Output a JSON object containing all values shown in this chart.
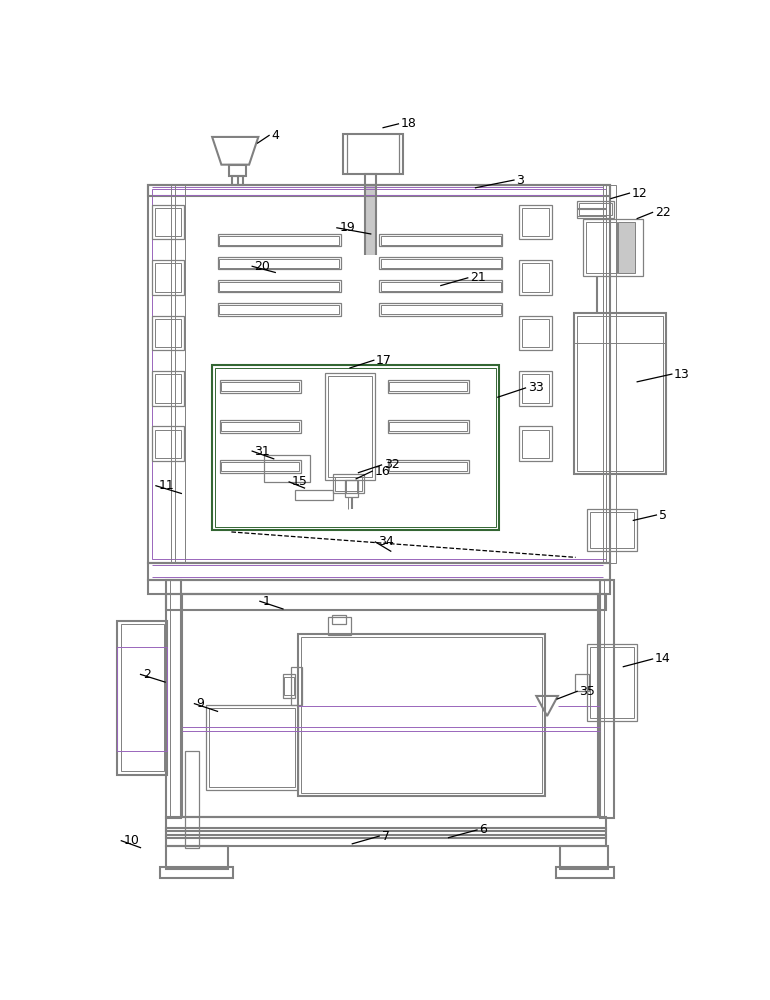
{
  "bg": "#ffffff",
  "lc": "#808080",
  "pc": "#9966bb",
  "gc": "#336633",
  "lgray": "#c8c8c8",
  "lw": 1.5,
  "lw2": 0.9,
  "lw3": 0.7
}
